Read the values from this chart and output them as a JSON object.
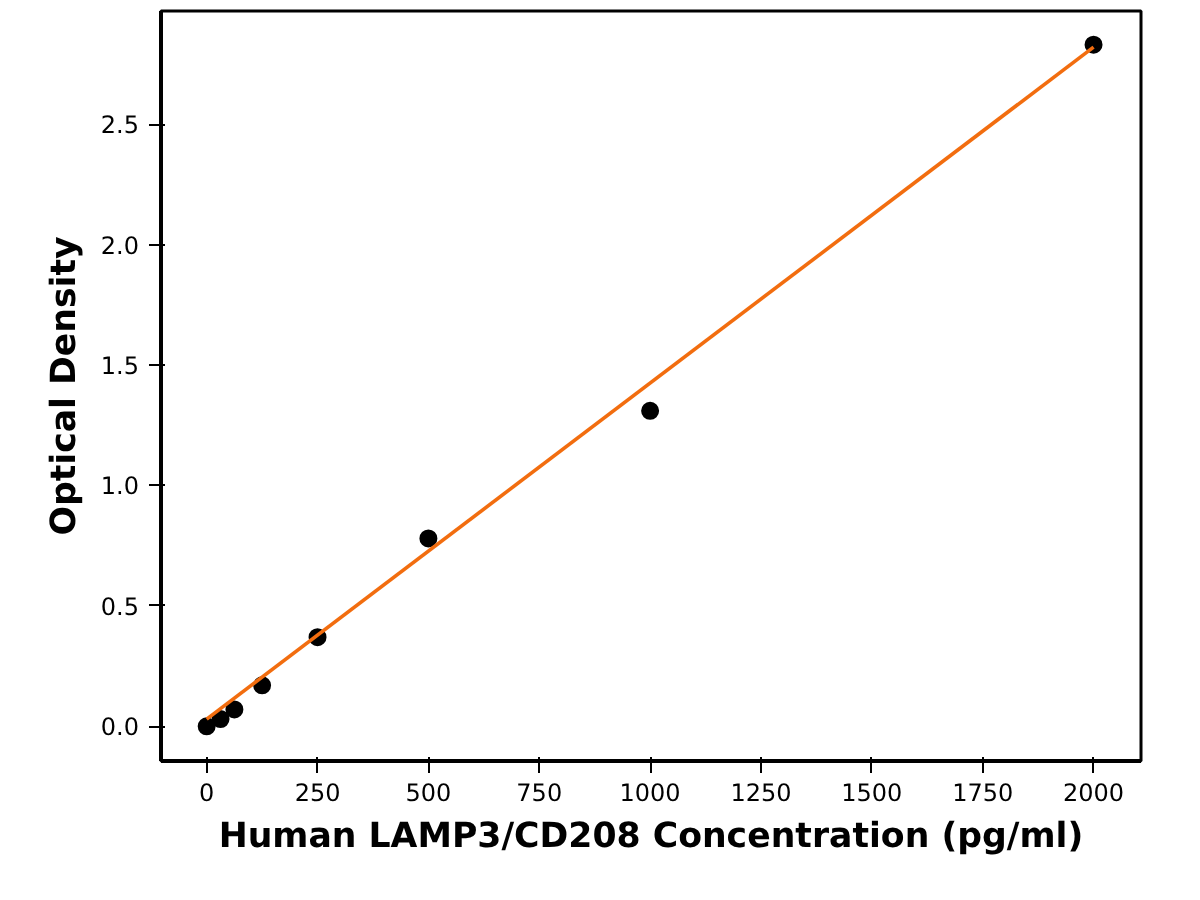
{
  "chart_data": {
    "type": "scatter",
    "xlabel": "Human LAMP3/CD208 Concentration (pg/ml)",
    "ylabel": "Optical Density",
    "x": [
      0,
      31.25,
      62.5,
      125,
      250,
      500,
      1000,
      2000
    ],
    "series": [
      {
        "color": "#000000",
        "values": [
          0.0,
          0.03,
          0.07,
          0.17,
          0.37,
          0.78,
          1.31,
          2.83
        ]
      },
      {
        "type": "line",
        "color": "#f26d0f",
        "x": [
          0,
          2000
        ],
        "values": [
          0.03,
          2.82
        ],
        "marker": "none"
      }
    ],
    "marker": "circle",
    "grid": false,
    "xlim": [
      -103,
      2107
    ],
    "ylim": [
      -0.144,
      2.97
    ],
    "xticks": [
      0,
      250,
      500,
      750,
      1000,
      1250,
      1500,
      1750,
      2000
    ],
    "yticks": [
      {
        "value": 0,
        "label": "0.0"
      },
      {
        "value": 0.5,
        "label": "0.5"
      },
      {
        "value": 1,
        "label": "1.0"
      },
      {
        "value": 1.5,
        "label": "1.5"
      },
      {
        "value": 2,
        "label": "2.0"
      },
      {
        "value": 2.5,
        "label": "2.5"
      }
    ]
  }
}
